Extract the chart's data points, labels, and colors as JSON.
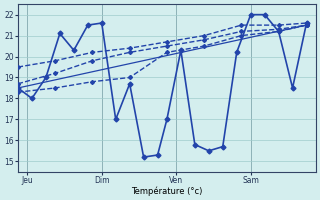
{
  "background_color": "#d4eeee",
  "grid_color": "#a0cccc",
  "line_color": "#2244aa",
  "xlabel": "Température (°c)",
  "ylim": [
    14.5,
    22.5
  ],
  "yticks": [
    15,
    16,
    17,
    18,
    19,
    20,
    21,
    22
  ],
  "xlim": [
    0,
    32
  ],
  "day_labels": [
    "Jeu",
    "Dim",
    "Ven",
    "Sam"
  ],
  "day_positions": [
    1,
    9,
    17,
    25
  ],
  "vline_positions": [
    1,
    9,
    17,
    25
  ],
  "series": [
    {
      "x": [
        0,
        1.5,
        3,
        4.5,
        6,
        7.5,
        9,
        10.5,
        12,
        13.5,
        15,
        16,
        17.5,
        19,
        20.5,
        22,
        23.5,
        25,
        26.5,
        28,
        29.5,
        31
      ],
      "y": [
        18.5,
        18.0,
        19.0,
        21.1,
        20.3,
        21.5,
        21.6,
        17.0,
        18.7,
        15.2,
        15.3,
        17.0,
        20.3,
        15.8,
        15.5,
        15.7,
        20.2,
        22.0,
        22.0,
        21.2,
        18.5,
        21.6
      ],
      "linestyle": "-",
      "linewidth": 1.2,
      "marker": "D",
      "markersize": 2.5
    },
    {
      "x": [
        0,
        4,
        8,
        12,
        16,
        20,
        24,
        28,
        31
      ],
      "y": [
        19.5,
        19.8,
        20.2,
        20.4,
        20.7,
        21.0,
        21.5,
        21.5,
        21.6
      ],
      "linestyle": "--",
      "linewidth": 1.0,
      "marker": "D",
      "markersize": 2.0
    },
    {
      "x": [
        0,
        4,
        8,
        12,
        16,
        20,
        24,
        28,
        31
      ],
      "y": [
        18.7,
        19.2,
        19.8,
        20.2,
        20.5,
        20.8,
        21.2,
        21.3,
        21.5
      ],
      "linestyle": "--",
      "linewidth": 1.0,
      "marker": "D",
      "markersize": 2.0
    },
    {
      "x": [
        0,
        4,
        8,
        12,
        16,
        20,
        24,
        28,
        31
      ],
      "y": [
        18.3,
        18.5,
        18.8,
        19.0,
        20.2,
        20.5,
        21.0,
        21.2,
        21.5
      ],
      "linestyle": "--",
      "linewidth": 1.0,
      "marker": "D",
      "markersize": 2.0
    },
    {
      "x": [
        0,
        31
      ],
      "y": [
        18.5,
        21.5
      ],
      "linestyle": "-",
      "linewidth": 0.9,
      "marker": "D",
      "markersize": 2.0
    }
  ]
}
